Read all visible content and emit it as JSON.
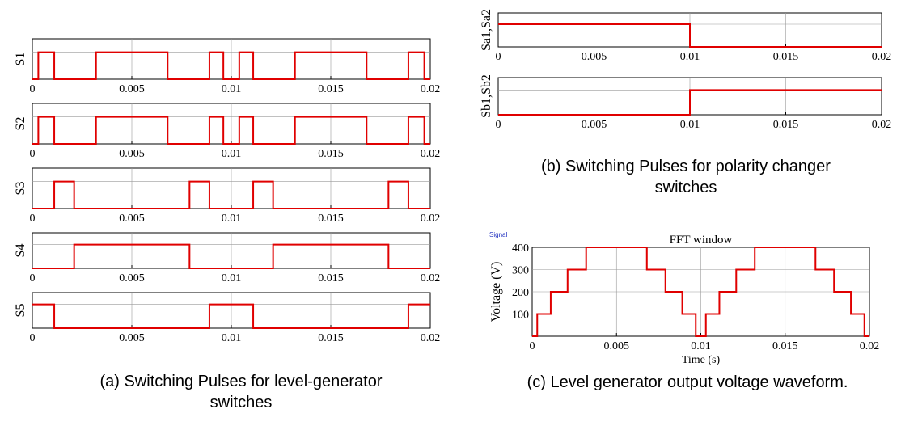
{
  "colors": {
    "signal": "#e00000",
    "grid": "#9a9a9a",
    "frame": "#000000"
  },
  "captions": {
    "a_line1": "(a) Switching Pulses for level-generator",
    "a_line2": "switches",
    "b_line1": "(b) Switching Pulses for polarity changer",
    "b_line2": "switches",
    "c_line1": "(c) Level generator output voltage waveform."
  },
  "chart_data": [
    {
      "type": "line",
      "ylabel": "S1",
      "xlim": [
        0,
        0.02
      ],
      "ylim": [
        0,
        1.5
      ],
      "xticks": [
        0,
        0.005,
        0.01,
        0.015,
        0.02
      ],
      "xtick_labels": [
        "0",
        "0.005",
        "0.01",
        "0.015",
        "0.02"
      ],
      "grid": true,
      "step": true,
      "x": [
        0,
        0.0003,
        0.0003,
        0.0011,
        0.0011,
        0.0032,
        0.0032,
        0.0068,
        0.0068,
        0.0089,
        0.0089,
        0.0096,
        0.0096,
        0.0104,
        0.0104,
        0.0111,
        0.0111,
        0.0132,
        0.0132,
        0.0168,
        0.0168,
        0.0189,
        0.0189,
        0.0197,
        0.0197,
        0.02
      ],
      "y": [
        0,
        0,
        1,
        1,
        0,
        0,
        1,
        1,
        0,
        0,
        1,
        1,
        0,
        0,
        1,
        1,
        0,
        0,
        1,
        1,
        0,
        0,
        1,
        1,
        0,
        0
      ]
    },
    {
      "type": "line",
      "ylabel": "S2",
      "xlim": [
        0,
        0.02
      ],
      "ylim": [
        0,
        1.5
      ],
      "xticks": [
        0,
        0.005,
        0.01,
        0.015,
        0.02
      ],
      "xtick_labels": [
        "0",
        "0.005",
        "0.01",
        "0.015",
        "0.02"
      ],
      "grid": true,
      "step": true,
      "x": [
        0,
        0.0003,
        0.0003,
        0.0011,
        0.0011,
        0.0032,
        0.0032,
        0.0068,
        0.0068,
        0.0089,
        0.0089,
        0.0096,
        0.0096,
        0.0104,
        0.0104,
        0.0111,
        0.0111,
        0.0132,
        0.0132,
        0.0168,
        0.0168,
        0.0189,
        0.0189,
        0.0197,
        0.0197,
        0.02
      ],
      "y": [
        0,
        0,
        1,
        1,
        0,
        0,
        1,
        1,
        0,
        0,
        1,
        1,
        0,
        0,
        1,
        1,
        0,
        0,
        1,
        1,
        0,
        0,
        1,
        1,
        0,
        0
      ]
    },
    {
      "type": "line",
      "ylabel": "S3",
      "xlim": [
        0,
        0.02
      ],
      "ylim": [
        0,
        1.5
      ],
      "xticks": [
        0,
        0.005,
        0.01,
        0.015,
        0.02
      ],
      "xtick_labels": [
        "0",
        "0.005",
        "0.01",
        "0.015",
        "0.02"
      ],
      "grid": true,
      "step": true,
      "x": [
        0,
        0.0011,
        0.0011,
        0.0021,
        0.0021,
        0.0079,
        0.0079,
        0.0089,
        0.0089,
        0.0111,
        0.0111,
        0.0121,
        0.0121,
        0.0179,
        0.0179,
        0.0189,
        0.0189,
        0.02
      ],
      "y": [
        0,
        0,
        1,
        1,
        0,
        0,
        1,
        1,
        0,
        0,
        1,
        1,
        0,
        0,
        1,
        1,
        0,
        0
      ]
    },
    {
      "type": "line",
      "ylabel": "S4",
      "xlim": [
        0,
        0.02
      ],
      "ylim": [
        0,
        1.5
      ],
      "xticks": [
        0,
        0.005,
        0.01,
        0.015,
        0.02
      ],
      "xtick_labels": [
        "0",
        "0.005",
        "0.01",
        "0.015",
        "0.02"
      ],
      "grid": true,
      "step": true,
      "x": [
        0,
        0.0021,
        0.0021,
        0.0079,
        0.0079,
        0.0121,
        0.0121,
        0.0179,
        0.0179,
        0.02
      ],
      "y": [
        0,
        0,
        1,
        1,
        0,
        0,
        1,
        1,
        0,
        0
      ]
    },
    {
      "type": "line",
      "ylabel": "S5",
      "xlim": [
        0,
        0.02
      ],
      "ylim": [
        0,
        1.5
      ],
      "xticks": [
        0,
        0.005,
        0.01,
        0.015,
        0.02
      ],
      "xtick_labels": [
        "0",
        "0.005",
        "0.01",
        "0.015",
        "0.02"
      ],
      "grid": true,
      "step": true,
      "x": [
        0,
        0.0011,
        0.0011,
        0.0089,
        0.0089,
        0.0111,
        0.0111,
        0.0189,
        0.0189,
        0.02
      ],
      "y": [
        1,
        1,
        0,
        0,
        1,
        1,
        0,
        0,
        1,
        1
      ]
    },
    {
      "type": "line",
      "ylabel": "Sa1,Sa2",
      "xlim": [
        0,
        0.02
      ],
      "ylim": [
        0,
        1.5
      ],
      "xticks": [
        0,
        0.005,
        0.01,
        0.015,
        0.02
      ],
      "xtick_labels": [
        "0",
        "0.005",
        "0.01",
        "0.015",
        "0.02"
      ],
      "grid": true,
      "step": true,
      "x": [
        0,
        0.01,
        0.01,
        0.02
      ],
      "y": [
        1,
        1,
        0,
        0
      ]
    },
    {
      "type": "line",
      "ylabel": "Sb1,Sb2",
      "xlim": [
        0,
        0.02
      ],
      "ylim": [
        0,
        1.5
      ],
      "xticks": [
        0,
        0.005,
        0.01,
        0.015,
        0.02
      ],
      "xtick_labels": [
        "0",
        "0.005",
        "0.01",
        "0.015",
        "0.02"
      ],
      "grid": true,
      "step": true,
      "x": [
        0,
        0.01,
        0.01,
        0.02
      ],
      "y": [
        0,
        0,
        1,
        1
      ]
    },
    {
      "type": "line",
      "title": "FFT window",
      "tag": "Signal",
      "xlabel": "Time (s)",
      "ylabel": "Voltage (V)",
      "xlim": [
        0,
        0.02
      ],
      "ylim": [
        0,
        400
      ],
      "xticks": [
        0,
        0.005,
        0.01,
        0.015,
        0.02
      ],
      "xtick_labels": [
        "0",
        "0.005",
        "0.01",
        "0.015",
        "0.02"
      ],
      "yticks": [
        100,
        200,
        300,
        400
      ],
      "ytick_labels": [
        "100",
        "200",
        "300",
        "400"
      ],
      "grid": true,
      "step": true,
      "x": [
        0,
        0.0003,
        0.0003,
        0.0011,
        0.0011,
        0.0021,
        0.0021,
        0.0032,
        0.0032,
        0.0068,
        0.0068,
        0.0079,
        0.0079,
        0.0089,
        0.0089,
        0.0097,
        0.0097,
        0.0103,
        0.0103,
        0.0111,
        0.0111,
        0.0121,
        0.0121,
        0.0132,
        0.0132,
        0.0168,
        0.0168,
        0.0179,
        0.0179,
        0.0189,
        0.0189,
        0.0197,
        0.0197,
        0.02
      ],
      "y": [
        0,
        0,
        100,
        100,
        200,
        200,
        300,
        300,
        400,
        400,
        300,
        300,
        200,
        200,
        100,
        100,
        0,
        0,
        100,
        100,
        200,
        200,
        300,
        300,
        400,
        400,
        300,
        300,
        200,
        200,
        100,
        100,
        0,
        0
      ]
    }
  ]
}
